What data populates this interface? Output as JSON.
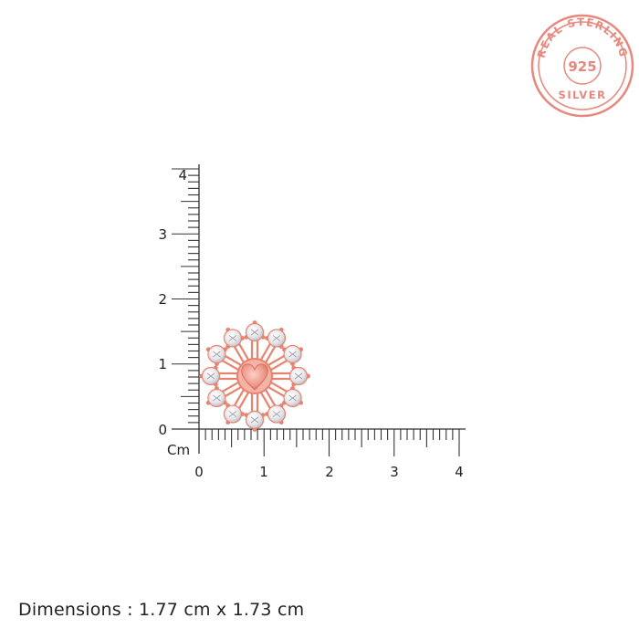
{
  "badge": {
    "top_text": "REAL STERLING",
    "center_text": "925",
    "bottom_text": "SILVER",
    "color": "#e8877c"
  },
  "ruler": {
    "unit_label": "Cm",
    "x_ticks": [
      "0",
      "1",
      "2",
      "3",
      "4"
    ],
    "y_ticks": [
      "0",
      "1",
      "2",
      "3",
      "4"
    ],
    "color": "#333333"
  },
  "product": {
    "metal_color": "#e8826e",
    "stone_count": 12
  },
  "dimensions_text": "Dimensions : 1.77 cm x 1.73 cm"
}
